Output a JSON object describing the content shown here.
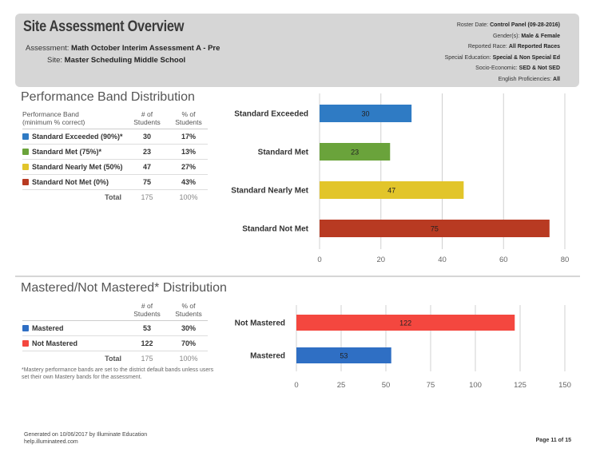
{
  "header": {
    "title": "Site Assessment Overview",
    "assessment_label": "Assessment:",
    "assessment_value": "Math October Interim Assessment A - Pre",
    "site_label": "Site:",
    "site_value": "Master Scheduling Middle School",
    "filters": [
      {
        "label": "Roster Date:",
        "value": "Control Panel (09-28-2016)"
      },
      {
        "label": "Gender(s):",
        "value": "Male & Female"
      },
      {
        "label": "Reported Race:",
        "value": "All Reported Races"
      },
      {
        "label": "Special Education:",
        "value": "Special & Non Special Ed"
      },
      {
        "label": "Socio-Economic:",
        "value": "SED & Not SED"
      },
      {
        "label": "English Proficiencies:",
        "value": "All"
      }
    ]
  },
  "performance": {
    "title": "Performance Band Distribution",
    "col_band": "Performance Band\n(minimum % correct)",
    "col_band_line1": "Performance Band",
    "col_band_line2": "(minimum % correct)",
    "col_students_line1": "# of",
    "col_students_line2": "Students",
    "col_pct_line1": "% of",
    "col_pct_line2": "Students",
    "rows": [
      {
        "label": "Standard Exceeded (90%)*",
        "students": "30",
        "pct": "17%",
        "color": "#2f7bc4"
      },
      {
        "label": "Standard Met (75%)*",
        "students": "23",
        "pct": "13%",
        "color": "#6aa33b"
      },
      {
        "label": "Standard Nearly Met (50%)",
        "students": "47",
        "pct": "27%",
        "color": "#e2c52a"
      },
      {
        "label": "Standard Not Met (0%)",
        "students": "75",
        "pct": "43%",
        "color": "#b83a22"
      }
    ],
    "total_label": "Total",
    "total_students": "175",
    "total_pct": "100%"
  },
  "mastery": {
    "title": "Mastered/Not Mastered* Distribution",
    "col_students_line1": "# of",
    "col_students_line2": "Students",
    "col_pct_line1": "% of",
    "col_pct_line2": "Students",
    "rows": [
      {
        "label": "Mastered",
        "students": "53",
        "pct": "30%",
        "color": "#2f6fc4"
      },
      {
        "label": "Not Mastered",
        "students": "122",
        "pct": "70%",
        "color": "#f4473f"
      }
    ],
    "total_label": "Total",
    "total_students": "175",
    "total_pct": "100%",
    "footnote": "*Mastery performance bands are set to the district default bands unless users set their own Mastery bands for the assessment."
  },
  "footer": {
    "generated": "Generated on 10/06/2017 by Illuminate Education",
    "site": "help.illuminateed.com",
    "page": "Page 11 of 15"
  },
  "chart_data": [
    {
      "type": "bar",
      "orientation": "horizontal",
      "categories": [
        "Standard Exceeded",
        "Standard Met",
        "Standard Nearly Met",
        "Standard Not Met"
      ],
      "values": [
        30,
        23,
        47,
        75
      ],
      "colors": [
        "#2f7bc4",
        "#6aa33b",
        "#e2c52a",
        "#b83a22"
      ],
      "xlim": [
        0,
        80
      ],
      "xticks": [
        0,
        20,
        40,
        60,
        80
      ],
      "grid": true
    },
    {
      "type": "bar",
      "orientation": "horizontal",
      "categories": [
        "Not Mastered",
        "Mastered"
      ],
      "values": [
        122,
        53
      ],
      "colors": [
        "#f4473f",
        "#2f6fc4"
      ],
      "xlim": [
        0,
        150
      ],
      "xticks": [
        0,
        25,
        50,
        75,
        100,
        125,
        150
      ],
      "grid": true
    }
  ]
}
